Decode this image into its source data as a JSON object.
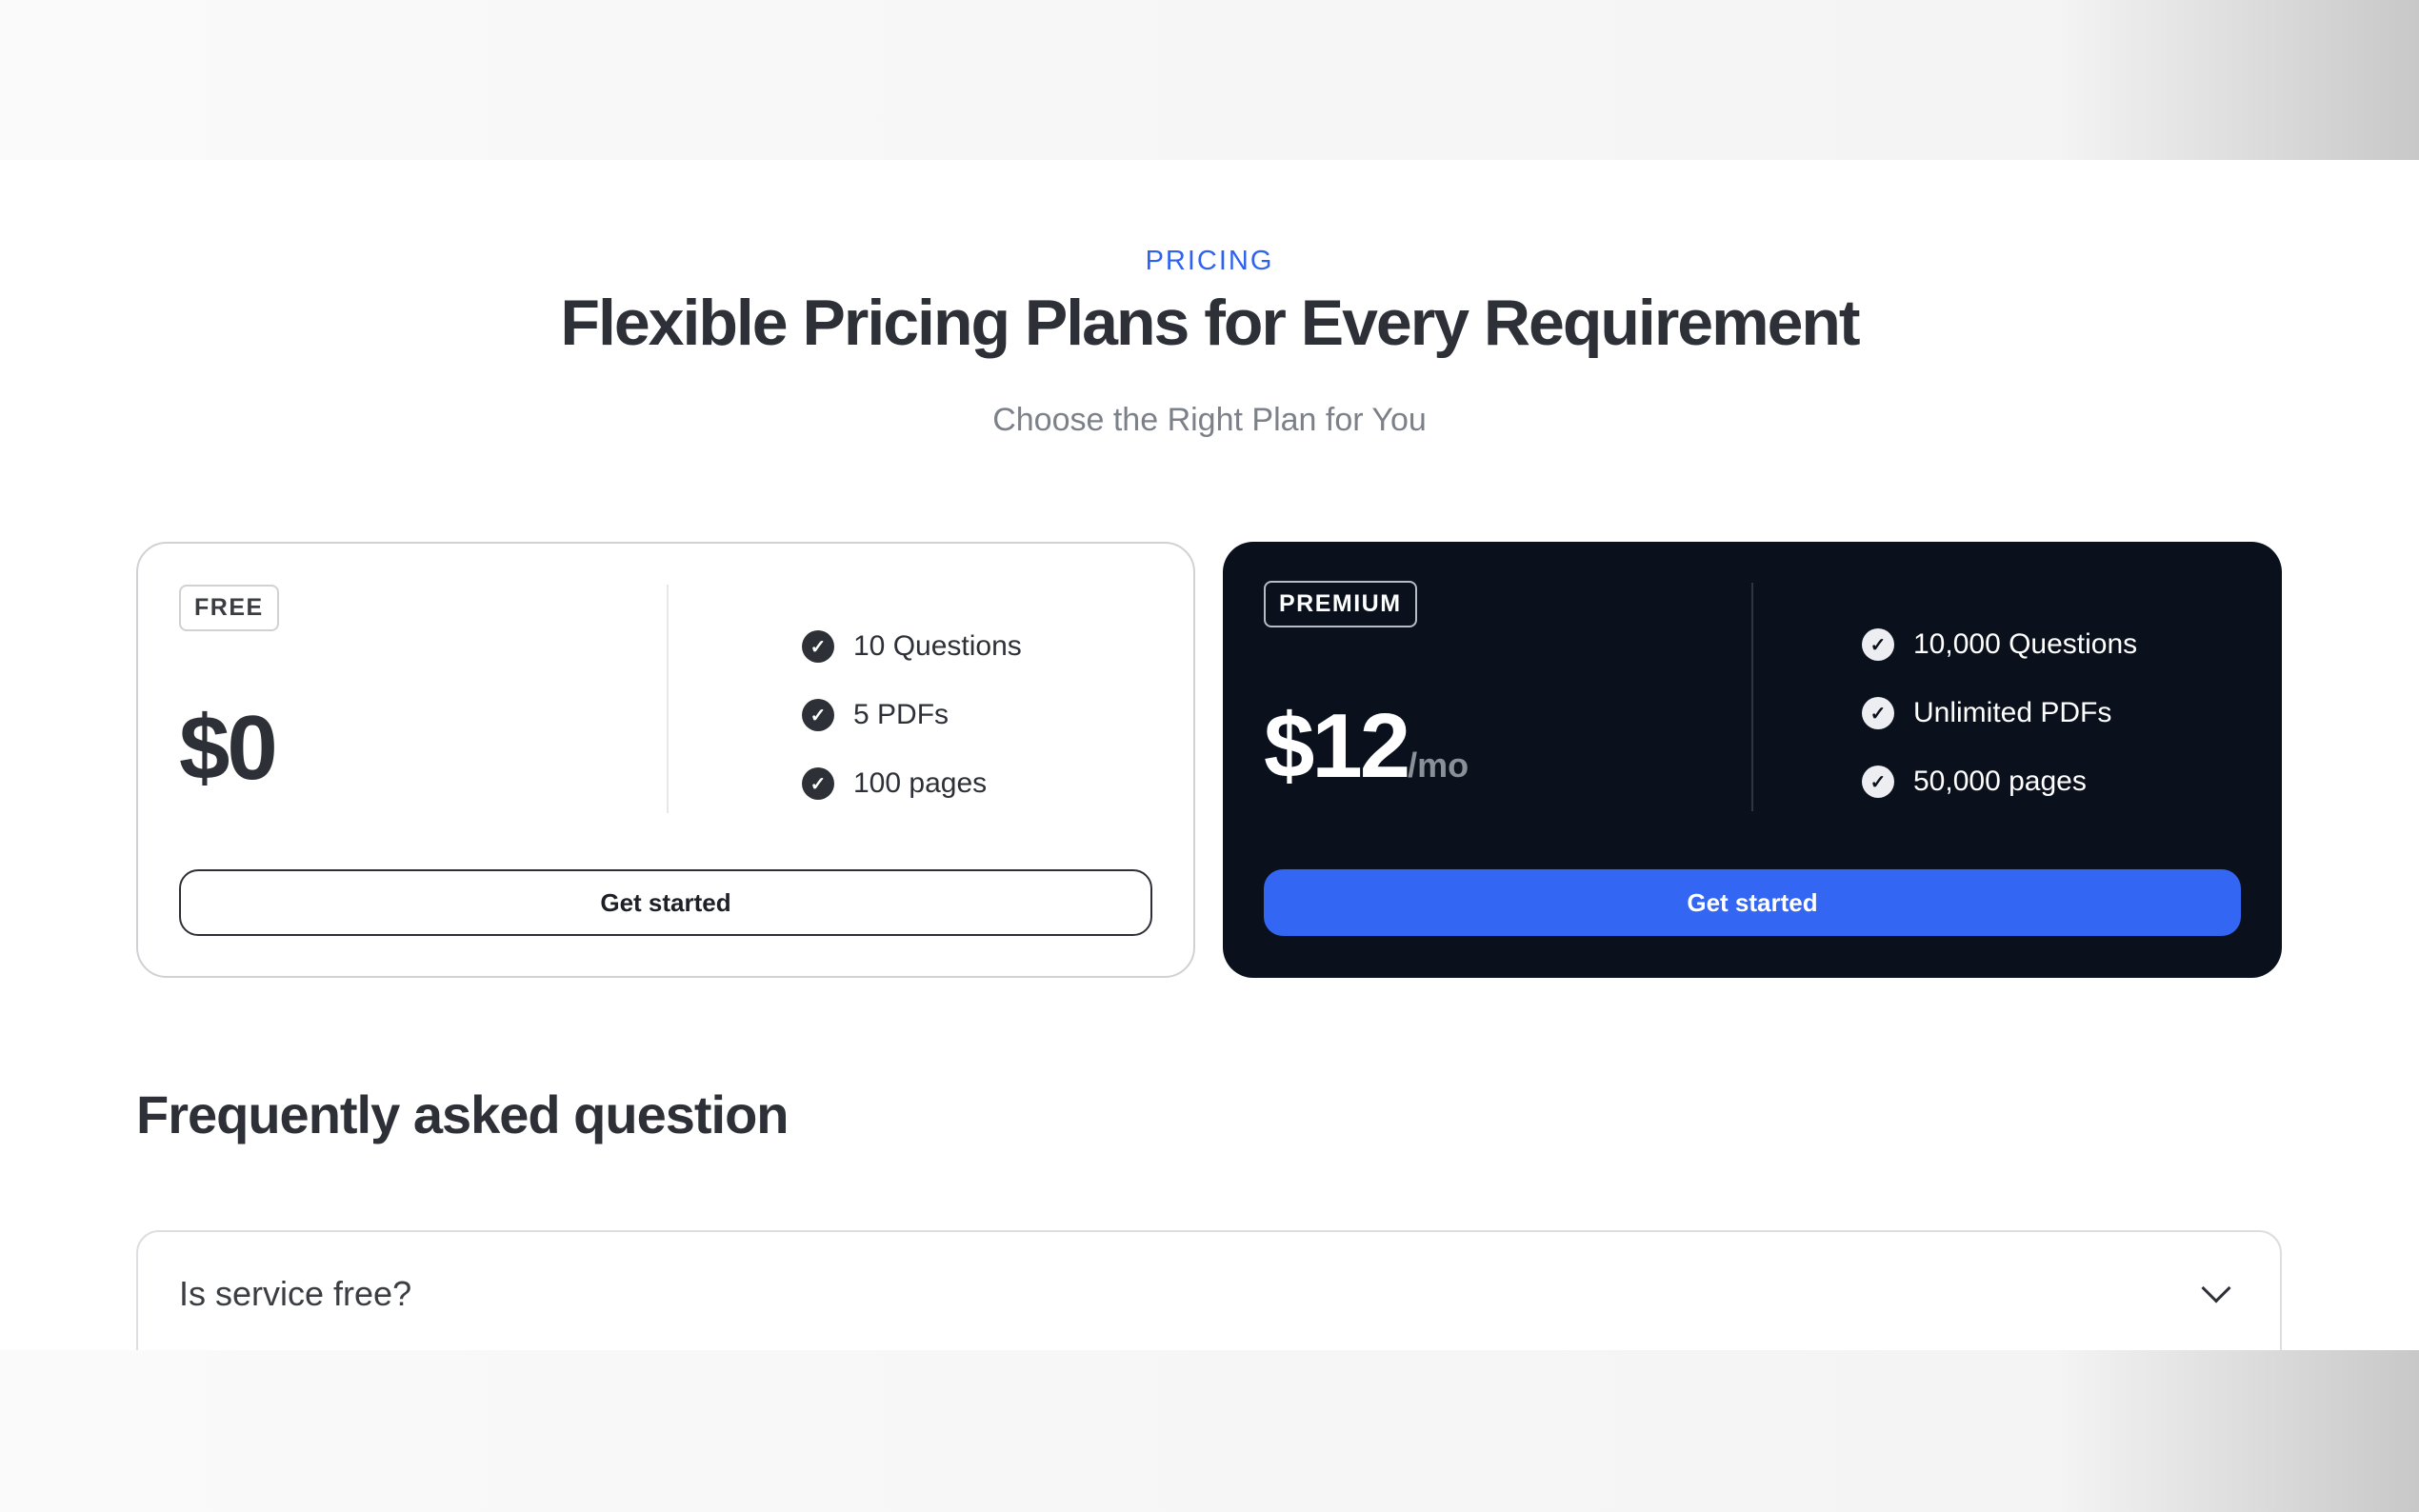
{
  "header": {
    "eyebrow": "PRICING",
    "title": "Flexible Pricing Plans for Every Requirement",
    "subtitle": "Choose the Right Plan for You"
  },
  "plans": [
    {
      "badge": "FREE",
      "price": "$0",
      "period": "",
      "features": [
        "10 Questions",
        "5 PDFs",
        "100 pages"
      ],
      "cta": "Get started"
    },
    {
      "badge": "PREMIUM",
      "price": "$12",
      "period": "/mo",
      "features": [
        "10,000 Questions",
        "Unlimited PDFs",
        "50,000 pages"
      ],
      "cta": "Get started"
    }
  ],
  "faq": {
    "title": "Frequently asked question",
    "items": [
      {
        "question": "Is service free?",
        "icon": "chevron-down-icon"
      }
    ]
  },
  "colors": {
    "accent": "#3366f2",
    "dark_card": "#0b111c"
  }
}
